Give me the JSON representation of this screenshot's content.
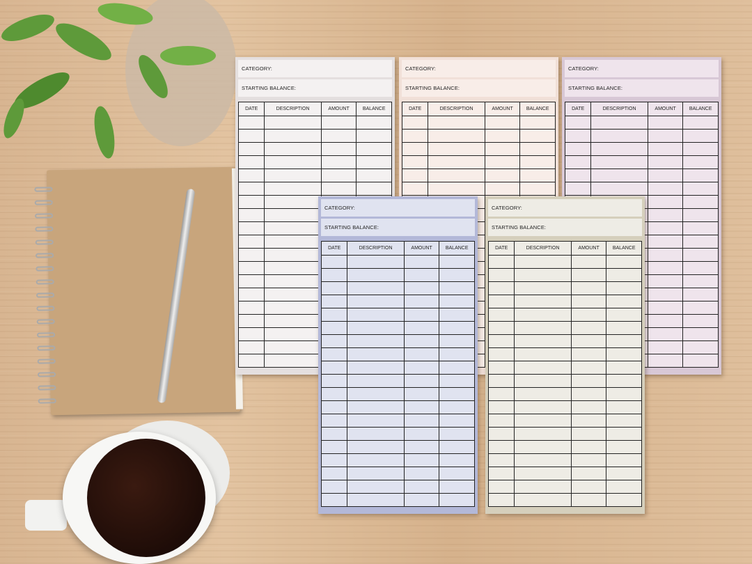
{
  "labels": {
    "category": "CATEGORY:",
    "starting_balance": "STARTING BALANCE:",
    "columns": [
      "DATE",
      "DESCRIPTION",
      "AMOUNT",
      "BALANCE"
    ]
  },
  "sheets": [
    {
      "name": "grey",
      "frame": "#e4dfdf",
      "fill": "#f4f1f1"
    },
    {
      "name": "peach",
      "frame": "#f1e0d8",
      "fill": "#f8ede8"
    },
    {
      "name": "lavender",
      "frame": "#d8c8d6",
      "fill": "#efe4ec"
    },
    {
      "name": "blue",
      "frame": "#b3b8d8",
      "fill": "#e0e3f0"
    },
    {
      "name": "beige",
      "frame": "#d5cfbc",
      "fill": "#eeece5"
    }
  ],
  "props": [
    "plant",
    "spiral-notebook",
    "pen",
    "coffee-cup"
  ]
}
